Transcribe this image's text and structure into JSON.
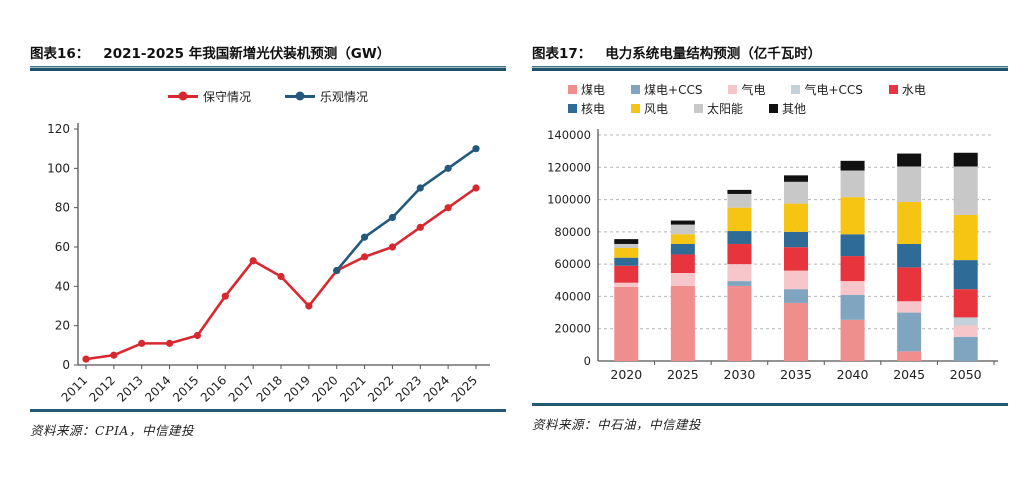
{
  "header_left": {
    "fig_label": "图表16：",
    "title": "2021-2025 年我国新增光伏装机预测（GW）"
  },
  "header_right": {
    "fig_label": "图表17：",
    "title": "电力系统电量结构预测（亿千瓦时）"
  },
  "source_left": "资料来源：CPIA，中信建投",
  "source_right": "资料来源：中石油，中信建投",
  "colors": {
    "rule": "#1f536b",
    "axis": "#555555",
    "grid": "#b5b5b5",
    "tick_text": "#222222"
  },
  "chart_data": [
    {
      "type": "line",
      "title": "2021-2025 年我国新增光伏装机预测（GW）",
      "x": [
        "2011",
        "2012",
        "2013",
        "2014",
        "2015",
        "2016",
        "2017",
        "2018",
        "2019",
        "2020",
        "2021",
        "2022",
        "2023",
        "2024",
        "2025"
      ],
      "series": [
        {
          "name": "保守情况",
          "color": "#d7282f",
          "values": [
            3,
            5,
            11,
            11,
            15,
            35,
            53,
            45,
            30,
            48,
            55,
            60,
            70,
            80,
            90
          ]
        },
        {
          "name": "乐观情况",
          "color": "#235a7c",
          "values": [
            null,
            null,
            null,
            null,
            null,
            null,
            null,
            null,
            null,
            48,
            65,
            75,
            90,
            100,
            110
          ]
        }
      ],
      "xlabel": "",
      "ylabel": "",
      "ylim": [
        0,
        120
      ],
      "ytick_step": 20,
      "grid": false,
      "legend_position": "top"
    },
    {
      "type": "bar",
      "stacked": true,
      "title": "电力系统电量结构预测（亿千瓦时）",
      "categories": [
        "2020",
        "2025",
        "2030",
        "2035",
        "2040",
        "2045",
        "2050"
      ],
      "series": [
        {
          "name": "煤电",
          "color": "#f08d8d",
          "values": [
            46000,
            46500,
            46500,
            36000,
            25500,
            6000,
            0
          ]
        },
        {
          "name": "煤电+CCS",
          "color": "#7fa5c0",
          "values": [
            0,
            0,
            3000,
            8500,
            15500,
            24000,
            15000
          ]
        },
        {
          "name": "气电",
          "color": "#f6c6ca",
          "values": [
            2500,
            8000,
            10500,
            11500,
            8500,
            7000,
            7000
          ]
        },
        {
          "name": "气电+CCS",
          "color": "#c3d2da",
          "values": [
            0,
            0,
            0,
            0,
            0,
            0,
            5000
          ]
        },
        {
          "name": "水电",
          "color": "#e8343c",
          "values": [
            10500,
            11500,
            12500,
            14500,
            15500,
            21000,
            17500
          ]
        },
        {
          "name": "核电",
          "color": "#2e6b96",
          "values": [
            5000,
            6500,
            8000,
            9500,
            13500,
            14500,
            18000
          ]
        },
        {
          "name": "风电",
          "color": "#f6c514",
          "values": [
            6000,
            6000,
            14500,
            17500,
            23000,
            26000,
            28000
          ]
        },
        {
          "name": "太阳能",
          "color": "#c8c8c8",
          "values": [
            2500,
            6000,
            8500,
            13500,
            16500,
            22000,
            30000
          ]
        },
        {
          "name": "其他",
          "color": "#111111",
          "values": [
            3000,
            2500,
            2500,
            4000,
            6000,
            8000,
            8500
          ]
        }
      ],
      "totals": [
        75500,
        87000,
        106000,
        115000,
        124000,
        128500,
        129000
      ],
      "xlabel": "",
      "ylabel": "",
      "ylim": [
        0,
        140000
      ],
      "ytick_step": 20000,
      "grid": "dashed-horizontal",
      "legend_position": "top",
      "legend_rows": [
        5,
        4
      ]
    }
  ]
}
